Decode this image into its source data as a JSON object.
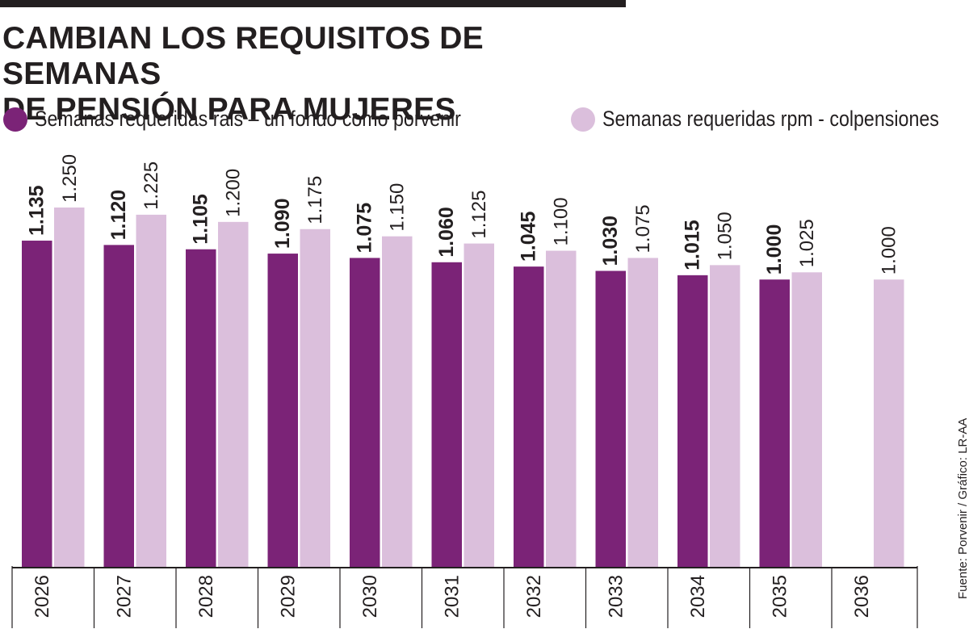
{
  "title_lines": [
    "CAMBIAN LOS REQUISITOS DE SEMANAS",
    "DE PENSIÓN PARA MUJERES"
  ],
  "source": "Fuente: Porvenir / Gráfico: LR-AA",
  "colors": {
    "series1": "#7b2377",
    "series2": "#dbbfdc",
    "text": "#231f20"
  },
  "chart_data": {
    "type": "bar",
    "title": "CAMBIAN LOS REQUISITOS DE SEMANAS DE PENSIÓN PARA MUJERES",
    "categories": [
      "2026",
      "2027",
      "2028",
      "2029",
      "2030",
      "2031",
      "2032",
      "2033",
      "2034",
      "2035",
      "2036"
    ],
    "series": [
      {
        "name": "Semanas requeridas rais – un fondo como porvenir",
        "values": [
          1135,
          1120,
          1105,
          1090,
          1075,
          1060,
          1045,
          1030,
          1015,
          1000,
          null
        ],
        "labels": [
          "1.135",
          "1.120",
          "1.105",
          "1.090",
          "1.075",
          "1.060",
          "1.045",
          "1.030",
          "1.015",
          "1.000",
          null
        ],
        "color": "#7b2377"
      },
      {
        "name": "Semanas requeridas rpm - colpensiones",
        "values": [
          1250,
          1225,
          1200,
          1175,
          1150,
          1125,
          1100,
          1075,
          1050,
          1025,
          1000
        ],
        "labels": [
          "1.250",
          "1.225",
          "1.200",
          "1.175",
          "1.150",
          "1.125",
          "1.100",
          "1.075",
          "1.050",
          "1.025",
          "1.000"
        ],
        "color": "#dbbfdc"
      }
    ],
    "xlabel": "",
    "ylabel": "",
    "ylim": [
      0,
      1250
    ],
    "grid": false,
    "legend": "top"
  }
}
